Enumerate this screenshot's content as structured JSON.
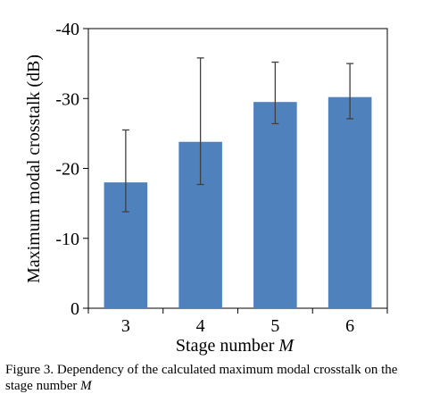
{
  "chart_data": {
    "type": "bar",
    "categories": [
      "3",
      "4",
      "5",
      "6"
    ],
    "values": [
      -18,
      -23.8,
      -29.5,
      -30.2
    ],
    "error_low": [
      -13.8,
      -17.7,
      -26.4,
      -27.1
    ],
    "error_high": [
      -25.5,
      -35.8,
      -35.2,
      -35.0
    ],
    "xlabel": "Stage number",
    "xlabel_var": "M",
    "ylabel": "Maximum modal crosstalk (dB)",
    "ylim": [
      0,
      -40
    ],
    "yticks": [
      "0",
      "-10",
      "-20",
      "-30",
      "-40"
    ],
    "ytick_values": [
      0,
      -10,
      -20,
      -30,
      -40
    ],
    "grid": false,
    "legend": "none",
    "bar_color": "#4f81bd",
    "error_color": "#404040"
  },
  "caption": {
    "line1": "Figure 3. Dependency of the calculated maximum modal crosstalk on the",
    "line2_prefix": "stage number ",
    "line2_var": "M"
  }
}
